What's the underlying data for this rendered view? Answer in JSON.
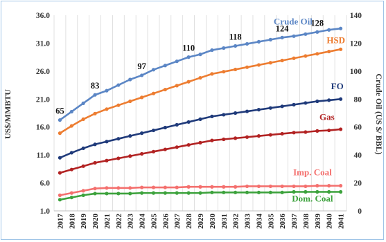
{
  "chart_data": {
    "type": "line",
    "x": [
      "2017",
      "2018",
      "2019",
      "2020",
      "2021",
      "2022",
      "2023",
      "2024",
      "2025",
      "2026",
      "2027",
      "2028",
      "2029",
      "2030",
      "2031",
      "2032",
      "2033",
      "2034",
      "2035",
      "2036",
      "2037",
      "2038",
      "2039",
      "2040",
      "2041"
    ],
    "ylabel": "US$/MMBTU",
    "ylabel_right": "Crude Oil (US $/ BBL)",
    "ylim": [
      1.0,
      36.0
    ],
    "yticks": [
      "1.0",
      "6.0",
      "11.0",
      "16.0",
      "21.0",
      "26.0",
      "31.0",
      "36.0"
    ],
    "ylim_right": [
      0,
      140
    ],
    "yticks_right": [
      "0",
      "20",
      "40",
      "60",
      "80",
      "100",
      "120",
      "140"
    ],
    "grid": "vertical",
    "series": [
      {
        "name": "Crude Oil",
        "axis": "right",
        "color": "#5b86c5",
        "values": [
          65,
          71,
          77,
          83,
          86,
          90,
          94,
          97,
          101,
          104,
          107,
          110,
          112,
          115,
          116.5,
          118,
          119.5,
          121,
          122.5,
          124,
          125,
          126.5,
          128,
          129.5,
          130.5
        ]
      },
      {
        "name": "HSD",
        "axis": "left",
        "color": "#ed7d31",
        "values": [
          14.9,
          16.2,
          17.4,
          18.4,
          19.2,
          19.9,
          20.6,
          21.3,
          22.0,
          22.7,
          23.4,
          24.1,
          24.8,
          25.5,
          25.9,
          26.3,
          26.7,
          27.1,
          27.5,
          27.9,
          28.3,
          28.7,
          29.1,
          29.5,
          29.9
        ]
      },
      {
        "name": "FO",
        "axis": "left",
        "color": "#1f3a7a",
        "values": [
          10.5,
          11.4,
          12.2,
          12.9,
          13.4,
          13.9,
          14.4,
          14.9,
          15.4,
          15.9,
          16.4,
          16.9,
          17.4,
          17.9,
          18.2,
          18.5,
          18.8,
          19.1,
          19.4,
          19.7,
          20.0,
          20.3,
          20.6,
          20.8,
          21.0
        ]
      },
      {
        "name": "Gas",
        "axis": "left",
        "color": "#b22222",
        "values": [
          7.8,
          8.4,
          9.0,
          9.6,
          10.0,
          10.4,
          10.8,
          11.2,
          11.6,
          12.0,
          12.4,
          12.8,
          13.2,
          13.6,
          13.8,
          14.0,
          14.2,
          14.4,
          14.6,
          14.8,
          15.0,
          15.1,
          15.3,
          15.4,
          15.6
        ]
      },
      {
        "name": "Imp. Coal",
        "axis": "left",
        "color": "#f4706e",
        "values": [
          3.8,
          4.2,
          4.6,
          5.0,
          5.1,
          5.1,
          5.1,
          5.2,
          5.2,
          5.2,
          5.2,
          5.3,
          5.3,
          5.3,
          5.3,
          5.3,
          5.4,
          5.4,
          5.4,
          5.4,
          5.4,
          5.4,
          5.5,
          5.5,
          5.5
        ]
      },
      {
        "name": "Dom. Coal",
        "axis": "left",
        "color": "#3ca23c",
        "values": [
          3.0,
          3.4,
          3.8,
          4.1,
          4.1,
          4.1,
          4.1,
          4.2,
          4.2,
          4.2,
          4.2,
          4.2,
          4.2,
          4.3,
          4.3,
          4.3,
          4.3,
          4.3,
          4.3,
          4.3,
          4.4,
          4.4,
          4.4,
          4.4,
          4.4
        ]
      }
    ],
    "data_labels": [
      {
        "text": "65",
        "x": "2017"
      },
      {
        "text": "83",
        "x": "2020"
      },
      {
        "text": "97",
        "x": "2024"
      },
      {
        "text": "110",
        "x": "2028"
      },
      {
        "text": "118",
        "x": "2032"
      },
      {
        "text": "124",
        "x": "2036"
      },
      {
        "text": "128",
        "x": "2039"
      }
    ]
  }
}
